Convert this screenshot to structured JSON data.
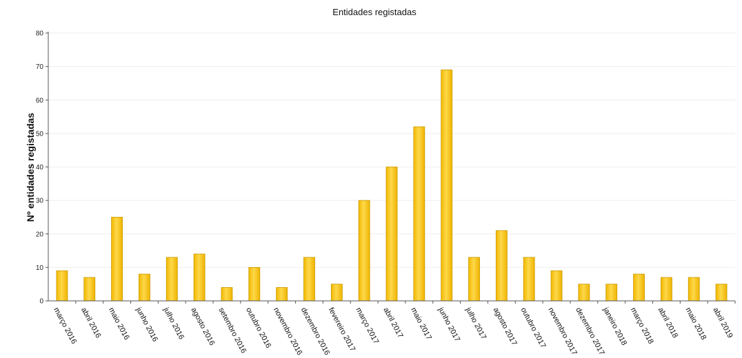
{
  "chart_data": {
    "type": "bar",
    "title": "Entidades registadas",
    "xlabel": "",
    "ylabel": "Nº entidades registadas",
    "ylim": [
      0,
      80
    ],
    "yticks": [
      0,
      10,
      20,
      30,
      40,
      50,
      60,
      70,
      80
    ],
    "grid": true,
    "legend": "none",
    "categories": [
      "março 2016",
      "abril 2016",
      "maio 2016",
      "junho 2016",
      "julho 2016",
      "agosto 2016",
      "setembro 2016",
      "outubro 2016",
      "novembro 2016",
      "dezembro 2016",
      "fevereiro 2017",
      "março 2017",
      "abril 2017",
      "maio 2017",
      "junho 2017",
      "julho 2017",
      "agosto 2017",
      "outubro 2017",
      "novembro 2017",
      "dezembro 2017",
      "janeiro 2018",
      "março 2018",
      "abril 2018",
      "maio 2018",
      "abril 2019"
    ],
    "values": [
      9,
      7,
      25,
      8,
      13,
      14,
      4,
      10,
      4,
      13,
      5,
      30,
      40,
      52,
      69,
      13,
      21,
      13,
      9,
      5,
      5,
      8,
      7,
      7,
      5
    ],
    "colors": {
      "bar_fill": "#f9c60b",
      "bar_stroke": "#c99a00",
      "axis": "#555555",
      "grid": "#eeeeee"
    }
  }
}
